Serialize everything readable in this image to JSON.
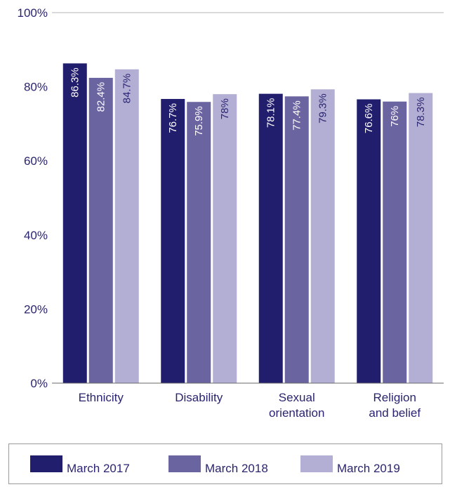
{
  "chart_data": {
    "type": "bar",
    "categories": [
      [
        "Ethnicity"
      ],
      [
        "Disability"
      ],
      [
        "Sexual",
        "orientation"
      ],
      [
        "Religion",
        "and belief"
      ]
    ],
    "series": [
      {
        "name": "March 2017",
        "values": [
          86.3,
          76.7,
          78.1,
          76.6
        ],
        "labels": [
          "86.3%",
          "76.7%",
          "78.1%",
          "76.6%"
        ],
        "color": "#221e6e",
        "label_color": "#ffffff"
      },
      {
        "name": "March 2018",
        "values": [
          82.4,
          75.9,
          77.4,
          76.0
        ],
        "labels": [
          "82.4%",
          "75.9%",
          "77.4%",
          "76%"
        ],
        "color": "#6a64a1",
        "label_color": "#ffffff"
      },
      {
        "name": "March 2019",
        "values": [
          84.7,
          78.0,
          79.3,
          78.3
        ],
        "labels": [
          "84.7%",
          "78%",
          "79.3%",
          "78.3%"
        ],
        "color": "#b3afd4",
        "label_color": "#2a2470"
      }
    ],
    "y_ticks": [
      "0%",
      "20%",
      "40%",
      "60%",
      "80%",
      "100%"
    ],
    "ylim": [
      0,
      100
    ],
    "grid": "top-line-only",
    "legend_position": "bottom"
  }
}
